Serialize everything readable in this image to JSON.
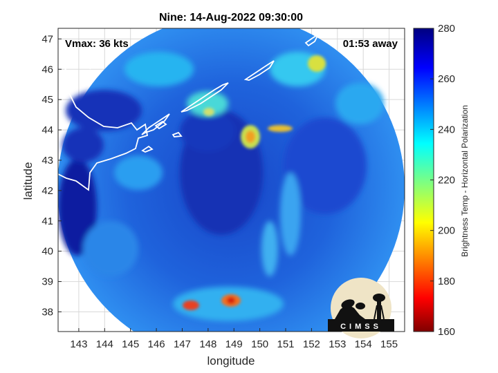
{
  "title": "Nine: 14-Aug-2022 09:30:00",
  "annotations": {
    "vmax": "Vmax: 36 kts",
    "time_away": "01:53 away"
  },
  "axes": {
    "xlabel": "longitude",
    "ylabel": "latitude",
    "xlim": [
      142.2,
      155.6
    ],
    "ylim": [
      37.35,
      47.35
    ],
    "xticks": [
      "143",
      "144",
      "145",
      "146",
      "147",
      "148",
      "149",
      "150",
      "151",
      "152",
      "153",
      "154",
      "155"
    ],
    "yticks": [
      "38",
      "39",
      "40",
      "41",
      "42",
      "43",
      "44",
      "45",
      "46",
      "47"
    ],
    "grid": true
  },
  "colorbar": {
    "label": "Brightness Temp - Horizontal Polarization",
    "ticks": [
      "160",
      "180",
      "200",
      "220",
      "240",
      "260",
      "280"
    ],
    "range": [
      160,
      280
    ],
    "colormap": "jet"
  },
  "logo": {
    "text": "CIMSS"
  },
  "colors": {
    "coastline": "#ffffff",
    "background_field": "#1e5ad8",
    "swath_edge": "#3aa0f0"
  }
}
